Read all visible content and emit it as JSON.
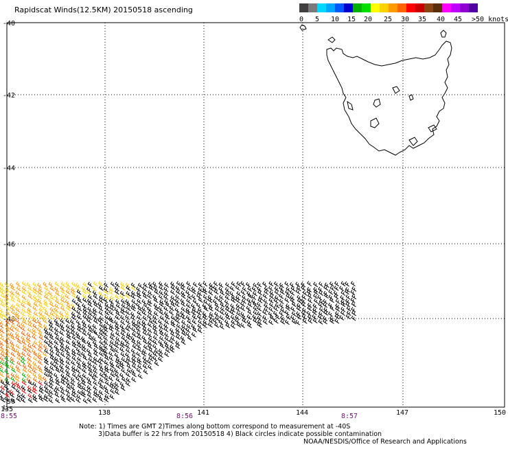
{
  "title": "Rapidscat Winds(12.5KM) 20150518 ascending",
  "legend": {
    "swatches": [
      {
        "color": "#404040"
      },
      {
        "color": "#7a7a7a"
      },
      {
        "color": "#00d8ff"
      },
      {
        "color": "#00a8ff"
      },
      {
        "color": "#0058ff"
      },
      {
        "color": "#0000cc"
      },
      {
        "color": "#00b000"
      },
      {
        "color": "#00e000"
      },
      {
        "color": "#ffff00"
      },
      {
        "color": "#ffd000"
      },
      {
        "color": "#ff9a00"
      },
      {
        "color": "#ff6400"
      },
      {
        "color": "#ff0000"
      },
      {
        "color": "#c80000"
      },
      {
        "color": "#8b4513"
      },
      {
        "color": "#5a2d0c"
      },
      {
        "color": "#ff00ff"
      },
      {
        "color": "#c000ff"
      },
      {
        "color": "#9000d0"
      },
      {
        "color": "#5000a0"
      }
    ],
    "labels": [
      "0",
      "5",
      "10",
      "15",
      "20",
      "25",
      "30",
      "35",
      "40",
      "45",
      ">50 knots"
    ]
  },
  "lat_labels": [
    "-40",
    "-42",
    "-44",
    "-46",
    "-48",
    "-50"
  ],
  "lon_labels": [
    "135",
    "138",
    "141",
    "144",
    "147",
    "150"
  ],
  "time_labels": [
    "8:55",
    "8:56",
    "8:57"
  ],
  "notes": {
    "line1": "Note: 1) Times are GMT 2)Times along bottom correspond to measurement at -40S",
    "line2": "3)Data buffer is 22 hrs from 20150518 4) Black circles indicate possible contamination",
    "line3": "NOAA/NESDIS/Office of Research and Applications"
  }
}
